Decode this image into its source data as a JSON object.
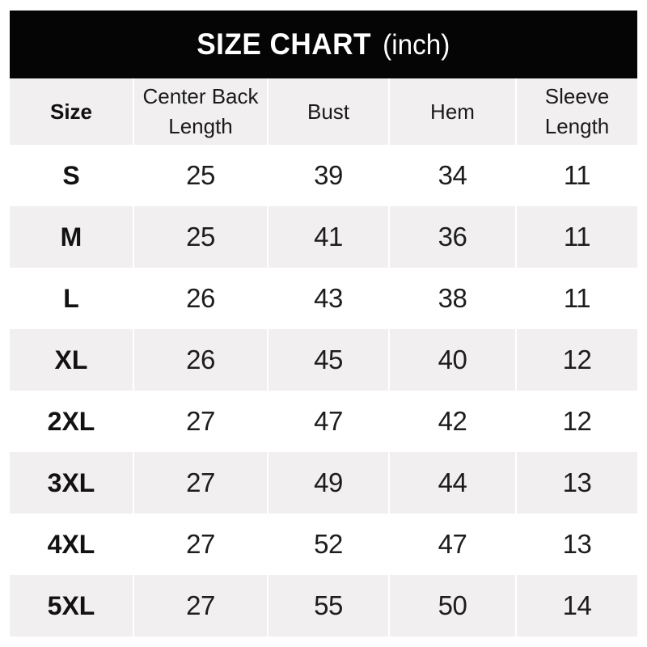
{
  "title": {
    "main": "SIZE CHART",
    "unit": "(inch)"
  },
  "chart_data": {
    "type": "table",
    "title": "SIZE CHART (inch)",
    "unit": "inch",
    "columns": [
      "Size",
      "Center Back Length",
      "Bust",
      "Hem",
      "Sleeve Length"
    ],
    "rows": [
      [
        "S",
        "25",
        "39",
        "34",
        "11"
      ],
      [
        "M",
        "25",
        "41",
        "36",
        "11"
      ],
      [
        "L",
        "26",
        "43",
        "38",
        "11"
      ],
      [
        "XL",
        "26",
        "45",
        "40",
        "12"
      ],
      [
        "2XL",
        "27",
        "47",
        "42",
        "12"
      ],
      [
        "3XL",
        "27",
        "49",
        "44",
        "13"
      ],
      [
        "4XL",
        "27",
        "52",
        "47",
        "13"
      ],
      [
        "5XL",
        "27",
        "55",
        "50",
        "14"
      ]
    ],
    "layout": {
      "row_striping": "alternating white / light gray starting white at row S",
      "header_bg": "light gray",
      "legend": "none",
      "grid": "thin white column separators"
    }
  },
  "colors": {
    "title_bar_bg": "#050505",
    "title_text": "#ffffff",
    "stripe_bg": "#f1efef",
    "body_text": "#1d1d1d",
    "page_bg": "#ffffff"
  }
}
